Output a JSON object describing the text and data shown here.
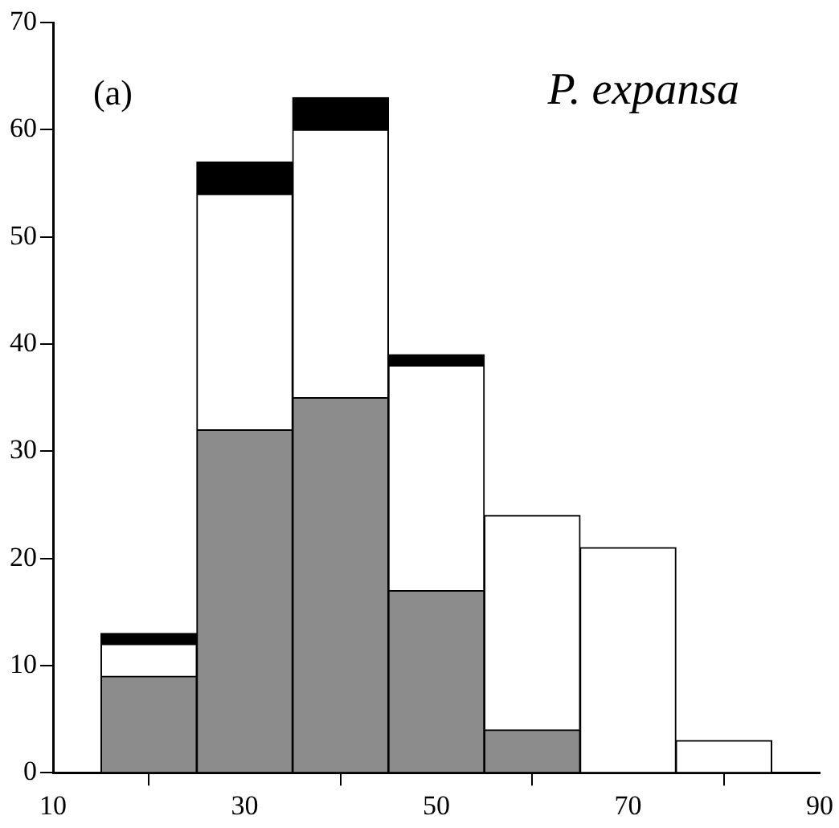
{
  "chart_data": {
    "type": "bar",
    "x": [
      20,
      30,
      40,
      50,
      60,
      70,
      80
    ],
    "stacked": true,
    "series": [
      {
        "color": "#8c8c8c",
        "values": [
          9,
          32,
          35,
          17,
          4,
          0,
          0
        ]
      },
      {
        "color": "#ffffff",
        "values": [
          3,
          22,
          25,
          21,
          20,
          21,
          3
        ]
      },
      {
        "color": "#000000",
        "values": [
          1,
          3,
          3,
          1,
          0,
          0,
          0
        ]
      }
    ],
    "xlim": [
      10,
      90
    ],
    "xticks": [
      10,
      30,
      50,
      70,
      90
    ],
    "ylim": [
      0,
      70
    ],
    "yticks": [
      0,
      10,
      20,
      30,
      40,
      50,
      60,
      70
    ],
    "grid": false,
    "legend": false,
    "annotations": [
      "(a)",
      "P. expansa"
    ]
  }
}
